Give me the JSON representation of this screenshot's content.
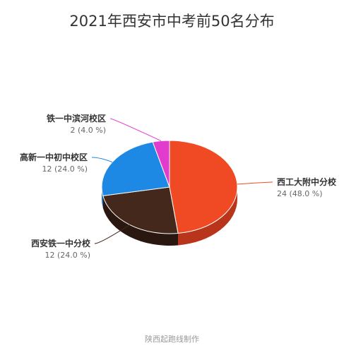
{
  "chart_data": {
    "type": "pie",
    "title": "2021年西安市中考前50名分布",
    "unit_count_format": "%",
    "slices": [
      {
        "label": "西工大附中分校",
        "value": 24,
        "percent": "48.0 %",
        "color": "#f04a25",
        "side_color": "#b8341a"
      },
      {
        "label": "西安铁一中分校",
        "value": 12,
        "percent": "24.0 %",
        "color": "#44281b",
        "side_color": "#2a170f"
      },
      {
        "label": "高新一中初中校区",
        "value": 12,
        "percent": "24.0 %",
        "color": "#1e88e5",
        "side_color": "#1565b0"
      },
      {
        "label": "铁一中滨河校区",
        "value": 2,
        "percent": "4.0 %",
        "color": "#e23ccf",
        "side_color": "#a92c9a"
      }
    ],
    "legend": "none"
  },
  "footer": "陕西起跑线制作"
}
